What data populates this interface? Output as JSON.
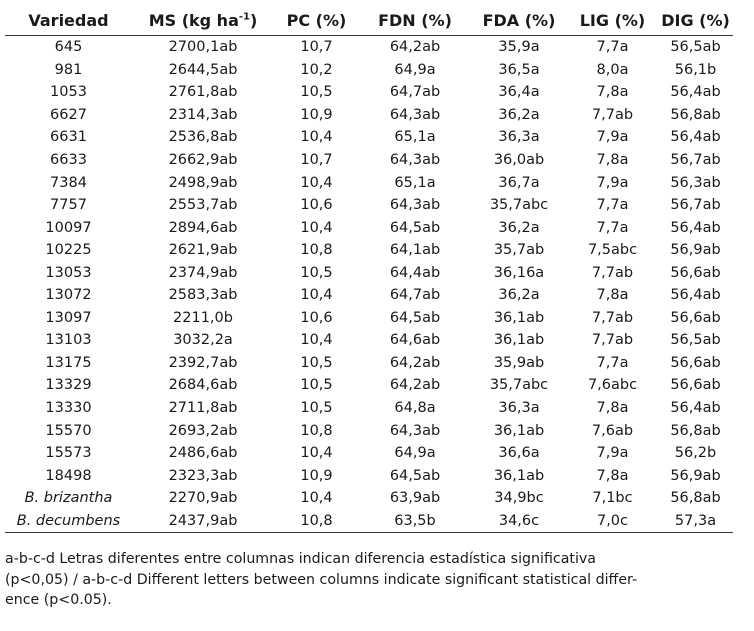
{
  "table": {
    "headers": {
      "variedad": "Variedad",
      "ms_pre": "MS (kg ha",
      "ms_sup": "-1",
      "ms_post": ")",
      "pc": "PC (%)",
      "fdn": "FDN (%)",
      "fda": "FDA (%)",
      "lig": "LIG (%)",
      "dig": "DIG (%)"
    },
    "rows": [
      [
        "645",
        "2700,1ab",
        "10,7",
        "64,2ab",
        "35,9a",
        "7,7a",
        "56,5ab"
      ],
      [
        "981",
        "2644,5ab",
        "10,2",
        "64,9a",
        "36,5a",
        "8,0a",
        "56,1b"
      ],
      [
        "1053",
        "2761,8ab",
        "10,5",
        "64,7ab",
        "36,4a",
        "7,8a",
        "56,4ab"
      ],
      [
        "6627",
        "2314,3ab",
        "10,9",
        "64,3ab",
        "36,2a",
        "7,7ab",
        "56,8ab"
      ],
      [
        "6631",
        "2536,8ab",
        "10,4",
        "65,1a",
        "36,3a",
        "7,9a",
        "56,4ab"
      ],
      [
        "6633",
        "2662,9ab",
        "10,7",
        "64,3ab",
        "36,0ab",
        "7,8a",
        "56,7ab"
      ],
      [
        "7384",
        "2498,9ab",
        "10,4",
        "65,1a",
        "36,7a",
        "7,9a",
        "56,3ab"
      ],
      [
        "7757",
        "2553,7ab",
        "10,6",
        "64,3ab",
        "35,7abc",
        "7,7a",
        "56,7ab"
      ],
      [
        "10097",
        "2894,6ab",
        "10,4",
        "64,5ab",
        "36,2a",
        "7,7a",
        "56,4ab"
      ],
      [
        "10225",
        "2621,9ab",
        "10,8",
        "64,1ab",
        "35,7ab",
        "7,5abc",
        "56,9ab"
      ],
      [
        "13053",
        "2374,9ab",
        "10,5",
        "64,4ab",
        "36,16a",
        "7,7ab",
        "56,6ab"
      ],
      [
        "13072",
        "2583,3ab",
        "10,4",
        "64,7ab",
        "36,2a",
        "7,8a",
        "56,4ab"
      ],
      [
        "13097",
        "2211,0b",
        "10,6",
        "64,5ab",
        "36,1ab",
        "7,7ab",
        "56,6ab"
      ],
      [
        "13103",
        "3032,2a",
        "10,4",
        "64,6ab",
        "36,1ab",
        "7,7ab",
        "56,5ab"
      ],
      [
        "13175",
        "2392,7ab",
        "10,5",
        "64,2ab",
        "35,9ab",
        "7,7a",
        "56,6ab"
      ],
      [
        "13329",
        "2684,6ab",
        "10,5",
        "64,2ab",
        "35,7abc",
        "7,6abc",
        "56,6ab"
      ],
      [
        "13330",
        "2711,8ab",
        "10,5",
        "64,8a",
        "36,3a",
        "7,8a",
        "56,4ab"
      ],
      [
        "15570",
        "2693,2ab",
        "10,8",
        "64,3ab",
        "36,1ab",
        "7,6ab",
        "56,8ab"
      ],
      [
        "15573",
        "2486,6ab",
        "10,4",
        "64,9a",
        "36,6a",
        "7,9a",
        "56,2b"
      ],
      [
        "18498",
        "2323,3ab",
        "10,9",
        "64,5ab",
        "36,1ab",
        "7,8a",
        "56,9ab"
      ],
      [
        "B. brizantha",
        "2270,9ab",
        "10,4",
        "63,9ab",
        "34,9bc",
        "7,1bc",
        "56,8ab"
      ],
      [
        "B. decumbens",
        "2437,9ab",
        "10,8",
        "63,5b",
        "34,6c",
        "7,0c",
        "57,3a"
      ]
    ],
    "italic_rows": [
      20,
      21
    ]
  },
  "footnote": {
    "line1": "a-b-c-d Letras diferentes entre columnas indican diferencia estadística significativa",
    "line2": "(p<0,05) / a-b-c-d Different letters between columns indicate significant statistical differ-",
    "line3": "ence (p<0.05)."
  }
}
